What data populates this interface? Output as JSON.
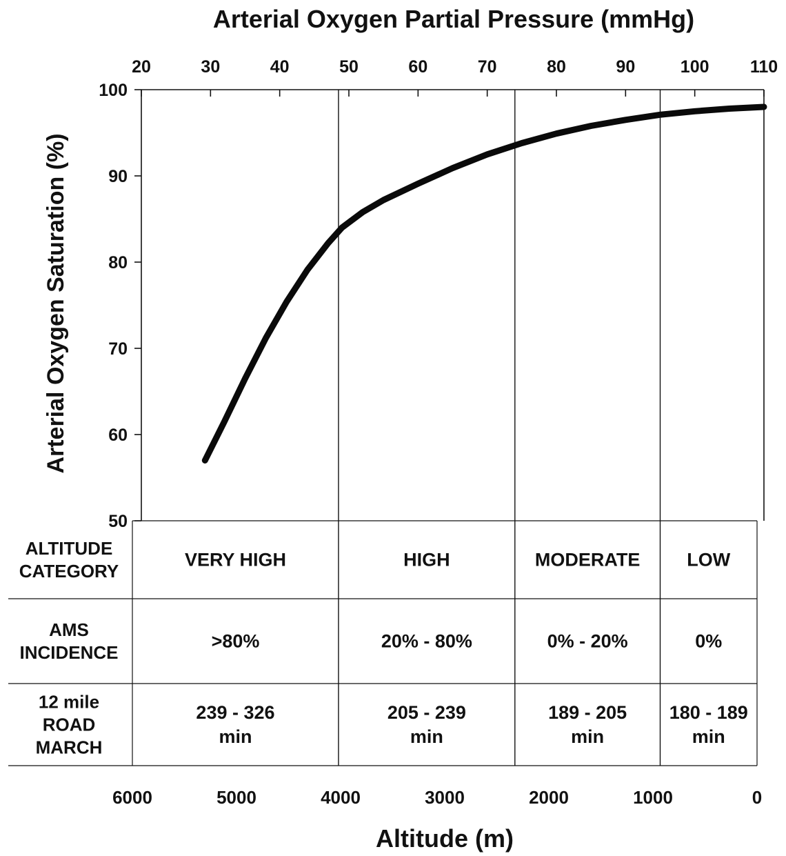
{
  "chart_data": {
    "type": "line",
    "title": "Arterial Oxygen Partial Pressure (mmHg)",
    "xlabel_top": "Arterial Oxygen Partial Pressure (mmHg)",
    "ylabel": "Arterial Oxygen Saturation (%)",
    "xlabel_bottom": "Altitude (m)",
    "x_top_ticks": [
      "20",
      "30",
      "40",
      "50",
      "60",
      "70",
      "80",
      "90",
      "100",
      "110"
    ],
    "x_top_lim": [
      20,
      110
    ],
    "y_ticks": [
      "100",
      "90",
      "80",
      "70",
      "60",
      "50"
    ],
    "ylim": [
      50,
      100
    ],
    "x_bottom_ticks": [
      "6000",
      "5000",
      "4000",
      "3000",
      "2000",
      "1000",
      "0"
    ],
    "x_bottom_lim": [
      6000,
      0
    ],
    "grid": false,
    "series": [
      {
        "x": [
          29.2,
          32,
          35,
          38,
          41,
          44,
          47,
          49,
          52,
          55,
          60,
          65,
          70,
          75,
          80,
          85,
          90,
          95,
          100,
          105,
          110
        ],
        "y": [
          57.0,
          61.5,
          66.5,
          71.2,
          75.4,
          79.1,
          82.2,
          84.0,
          85.8,
          87.2,
          89.1,
          90.9,
          92.5,
          93.8,
          94.9,
          95.8,
          96.5,
          97.1,
          97.5,
          97.8,
          98.0
        ]
      }
    ],
    "boundaries_mmHg": [
      48.5,
      74,
      95
    ],
    "table": {
      "rows": [
        {
          "label": "ALTITUDE\nCATEGORY",
          "cells": [
            "VERY HIGH",
            "HIGH",
            "MODERATE",
            "LOW"
          ]
        },
        {
          "label": "AMS\nINCIDENCE",
          "cells": [
            ">80%",
            "20% - 80%",
            "0% - 20%",
            "0%"
          ]
        },
        {
          "label": "12 mile\nROAD\nMARCH",
          "cells": [
            "239 - 326\nmin",
            "205 - 239\nmin",
            "189 - 205\nmin",
            "180 - 189\nmin"
          ]
        }
      ]
    }
  }
}
